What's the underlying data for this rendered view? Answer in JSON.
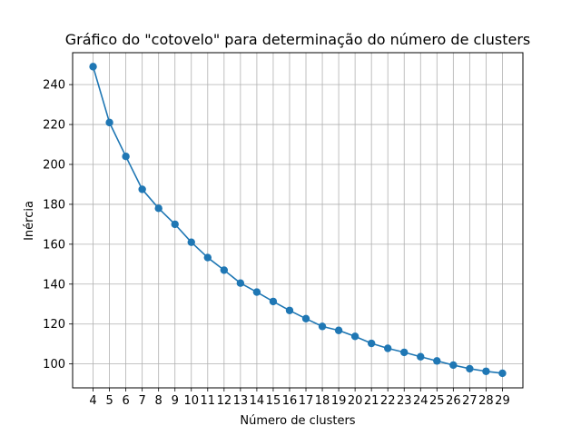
{
  "chart_data": {
    "type": "line",
    "title": "Gráfico do \"cotovelo\" para determinação do número de clusters",
    "xlabel": "Número de clusters",
    "ylabel": "Inércia",
    "x": [
      4,
      5,
      6,
      7,
      8,
      9,
      10,
      11,
      12,
      13,
      14,
      15,
      16,
      17,
      18,
      19,
      20,
      21,
      22,
      23,
      24,
      25,
      26,
      27,
      28,
      29
    ],
    "series": [
      {
        "values": [
          249,
          221,
          204,
          187.5,
          178,
          170,
          161,
          153.3,
          147,
          140.5,
          136,
          131.3,
          126.8,
          122.7,
          118.8,
          116.8,
          113.8,
          110.3,
          107.8,
          105.8,
          103.6,
          101.5,
          99.4,
          97.6,
          96.3,
          95.3
        ],
        "color": "#1f77b4",
        "marker": "circle"
      }
    ],
    "xticks": [
      4,
      5,
      6,
      7,
      8,
      9,
      10,
      11,
      12,
      13,
      14,
      15,
      16,
      17,
      18,
      19,
      20,
      21,
      22,
      23,
      24,
      25,
      26,
      27,
      28,
      29
    ],
    "yticks": [
      100,
      120,
      140,
      160,
      180,
      200,
      220,
      240
    ],
    "xlim": [
      2.75,
      30.25
    ],
    "ylim": [
      88,
      256
    ],
    "grid": true,
    "legend": "none"
  }
}
